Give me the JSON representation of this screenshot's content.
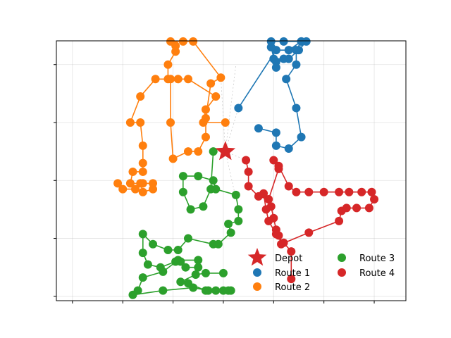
{
  "chart_data": {
    "type": "scatter",
    "title": "",
    "xlabel": "",
    "ylabel": "",
    "x_ticks": [
      0,
      10,
      20,
      30,
      40,
      50,
      60
    ],
    "y_ticks": [
      0,
      20,
      40,
      60,
      80
    ],
    "xlim": [
      -3.2,
      66.3
    ],
    "ylim": [
      -1.5,
      88.2
    ],
    "grid": true,
    "legend": {
      "position": "lower-right",
      "columns": 2
    },
    "depot": {
      "name": "Depot",
      "color": "#d62728",
      "x": 30.4,
      "y": 50.0
    },
    "series": [
      {
        "name": "Route 1",
        "color": "#1f77b4",
        "points": [
          [
            33.0,
            65.0
          ],
          [
            40.5,
            85.0
          ],
          [
            43.0,
            85.0
          ],
          [
            45.5,
            88.0
          ],
          [
            46.5,
            88.0
          ],
          [
            45.0,
            85.0
          ],
          [
            43.0,
            82.0
          ],
          [
            42.0,
            82.0
          ],
          [
            40.0,
            82.0
          ],
          [
            40.5,
            81.0
          ],
          [
            40.5,
            79.0
          ],
          [
            39.5,
            86.0
          ],
          [
            39.5,
            88.0
          ],
          [
            42.0,
            88.0
          ],
          [
            45.5,
            88.0
          ],
          [
            44.5,
            85.0
          ],
          [
            44.5,
            80.0
          ],
          [
            42.5,
            75.0
          ],
          [
            44.5,
            65.0
          ],
          [
            45.5,
            55.0
          ],
          [
            43.0,
            51.0
          ],
          [
            40.5,
            52.0
          ],
          [
            40.5,
            56.5
          ],
          [
            37.0,
            58.0
          ]
        ]
      },
      {
        "name": "Route 2",
        "color": "#ff7f0e",
        "points": [
          [
            30.4,
            60.0
          ],
          [
            26.0,
            60.0
          ],
          [
            26.5,
            64.5
          ],
          [
            28.5,
            69.0
          ],
          [
            23.0,
            75.0
          ],
          [
            21.0,
            75.0
          ],
          [
            19.0,
            75.0
          ],
          [
            19.0,
            80.0
          ],
          [
            20.5,
            84.5
          ],
          [
            20.5,
            86.5
          ],
          [
            19.5,
            88.0
          ],
          [
            22.0,
            88.0
          ],
          [
            24.0,
            88.0
          ],
          [
            29.5,
            75.5
          ],
          [
            27.5,
            73.5
          ],
          [
            26.5,
            61.5
          ],
          [
            26.5,
            55.0
          ],
          [
            25.0,
            50.0
          ],
          [
            23.0,
            50.0
          ],
          [
            20.0,
            47.5
          ],
          [
            19.5,
            60.0
          ],
          [
            19.5,
            75.0
          ],
          [
            16.5,
            75.0
          ],
          [
            13.5,
            69.0
          ],
          [
            11.5,
            60.0
          ],
          [
            13.5,
            60.0
          ],
          [
            14.0,
            52.0
          ],
          [
            14.0,
            46.0
          ],
          [
            14.0,
            43.0
          ],
          [
            12.0,
            43.0
          ],
          [
            11.5,
            39.0
          ],
          [
            13.5,
            39.0
          ],
          [
            14.0,
            36.0
          ],
          [
            16.0,
            37.0
          ],
          [
            16.0,
            39.0
          ],
          [
            14.0,
            39.0
          ],
          [
            12.5,
            37.0
          ],
          [
            10.0,
            37.0
          ],
          [
            9.0,
            39.0
          ]
        ]
      },
      {
        "name": "Route 3",
        "color": "#2ca02c",
        "points": [
          [
            28.0,
            50.0
          ],
          [
            27.5,
            37.0
          ],
          [
            26.0,
            31.0
          ],
          [
            23.5,
            30.0
          ],
          [
            22.0,
            36.0
          ],
          [
            22.0,
            41.5
          ],
          [
            25.0,
            41.5
          ],
          [
            28.0,
            40.0
          ],
          [
            28.5,
            37.0
          ],
          [
            32.5,
            35.0
          ],
          [
            33.0,
            30.0
          ],
          [
            33.0,
            26.0
          ],
          [
            31.0,
            25.0
          ],
          [
            31.5,
            22.0
          ],
          [
            29.0,
            18.0
          ],
          [
            28.0,
            18.0
          ],
          [
            23.0,
            20.0
          ],
          [
            21.0,
            16.0
          ],
          [
            19.0,
            16.0
          ],
          [
            16.0,
            18.0
          ],
          [
            14.0,
            21.5
          ],
          [
            14.0,
            15.0
          ],
          [
            15.0,
            11.0
          ],
          [
            17.5,
            10.0
          ],
          [
            20.5,
            12.0
          ],
          [
            21.5,
            12.0
          ],
          [
            22.5,
            10.0
          ],
          [
            25.0,
            10.0
          ],
          [
            25.0,
            12.5
          ],
          [
            21.0,
            12.5
          ],
          [
            18.0,
            8.5
          ],
          [
            14.0,
            6.5
          ],
          [
            13.0,
            2.0
          ],
          [
            12.0,
            0.5
          ],
          [
            18.0,
            2.0
          ],
          [
            24.0,
            3.0
          ],
          [
            27.0,
            2.0
          ],
          [
            28.5,
            2.0
          ],
          [
            31.5,
            2.0
          ],
          [
            31.0,
            2.0
          ],
          [
            30.0,
            2.0
          ],
          [
            26.5,
            2.0
          ],
          [
            23.0,
            4.5
          ],
          [
            21.5,
            5.0
          ],
          [
            24.5,
            7.5
          ],
          [
            26.5,
            8.0
          ],
          [
            30.0,
            8.0
          ]
        ]
      },
      {
        "name": "Route 4",
        "color": "#d62728",
        "points": [
          [
            34.5,
            47.0
          ],
          [
            35.0,
            43.0
          ],
          [
            35.0,
            38.0
          ],
          [
            37.0,
            34.5
          ],
          [
            39.0,
            33.5
          ],
          [
            41.0,
            44.0
          ],
          [
            40.0,
            47.0
          ],
          [
            41.0,
            45.0
          ],
          [
            43.0,
            38.0
          ],
          [
            44.5,
            36.0
          ],
          [
            47.0,
            36.0
          ],
          [
            50.0,
            36.0
          ],
          [
            53.0,
            36.0
          ],
          [
            55.0,
            36.0
          ],
          [
            57.5,
            36.0
          ],
          [
            59.5,
            36.0
          ],
          [
            60.0,
            33.5
          ],
          [
            59.0,
            30.5
          ],
          [
            56.5,
            30.5
          ],
          [
            54.5,
            30.5
          ],
          [
            53.5,
            29.5
          ],
          [
            53.0,
            26.0
          ],
          [
            47.0,
            22.0
          ],
          [
            41.5,
            18.0
          ],
          [
            41.0,
            21.0
          ],
          [
            40.5,
            23.0
          ],
          [
            40.0,
            27.0
          ],
          [
            39.5,
            31.0
          ],
          [
            38.0,
            35.5
          ],
          [
            38.5,
            30.0
          ],
          [
            39.0,
            26.0
          ],
          [
            40.5,
            21.5
          ],
          [
            42.0,
            18.5
          ],
          [
            43.5,
            15.5
          ],
          [
            43.5,
            6.0
          ]
        ]
      }
    ]
  }
}
